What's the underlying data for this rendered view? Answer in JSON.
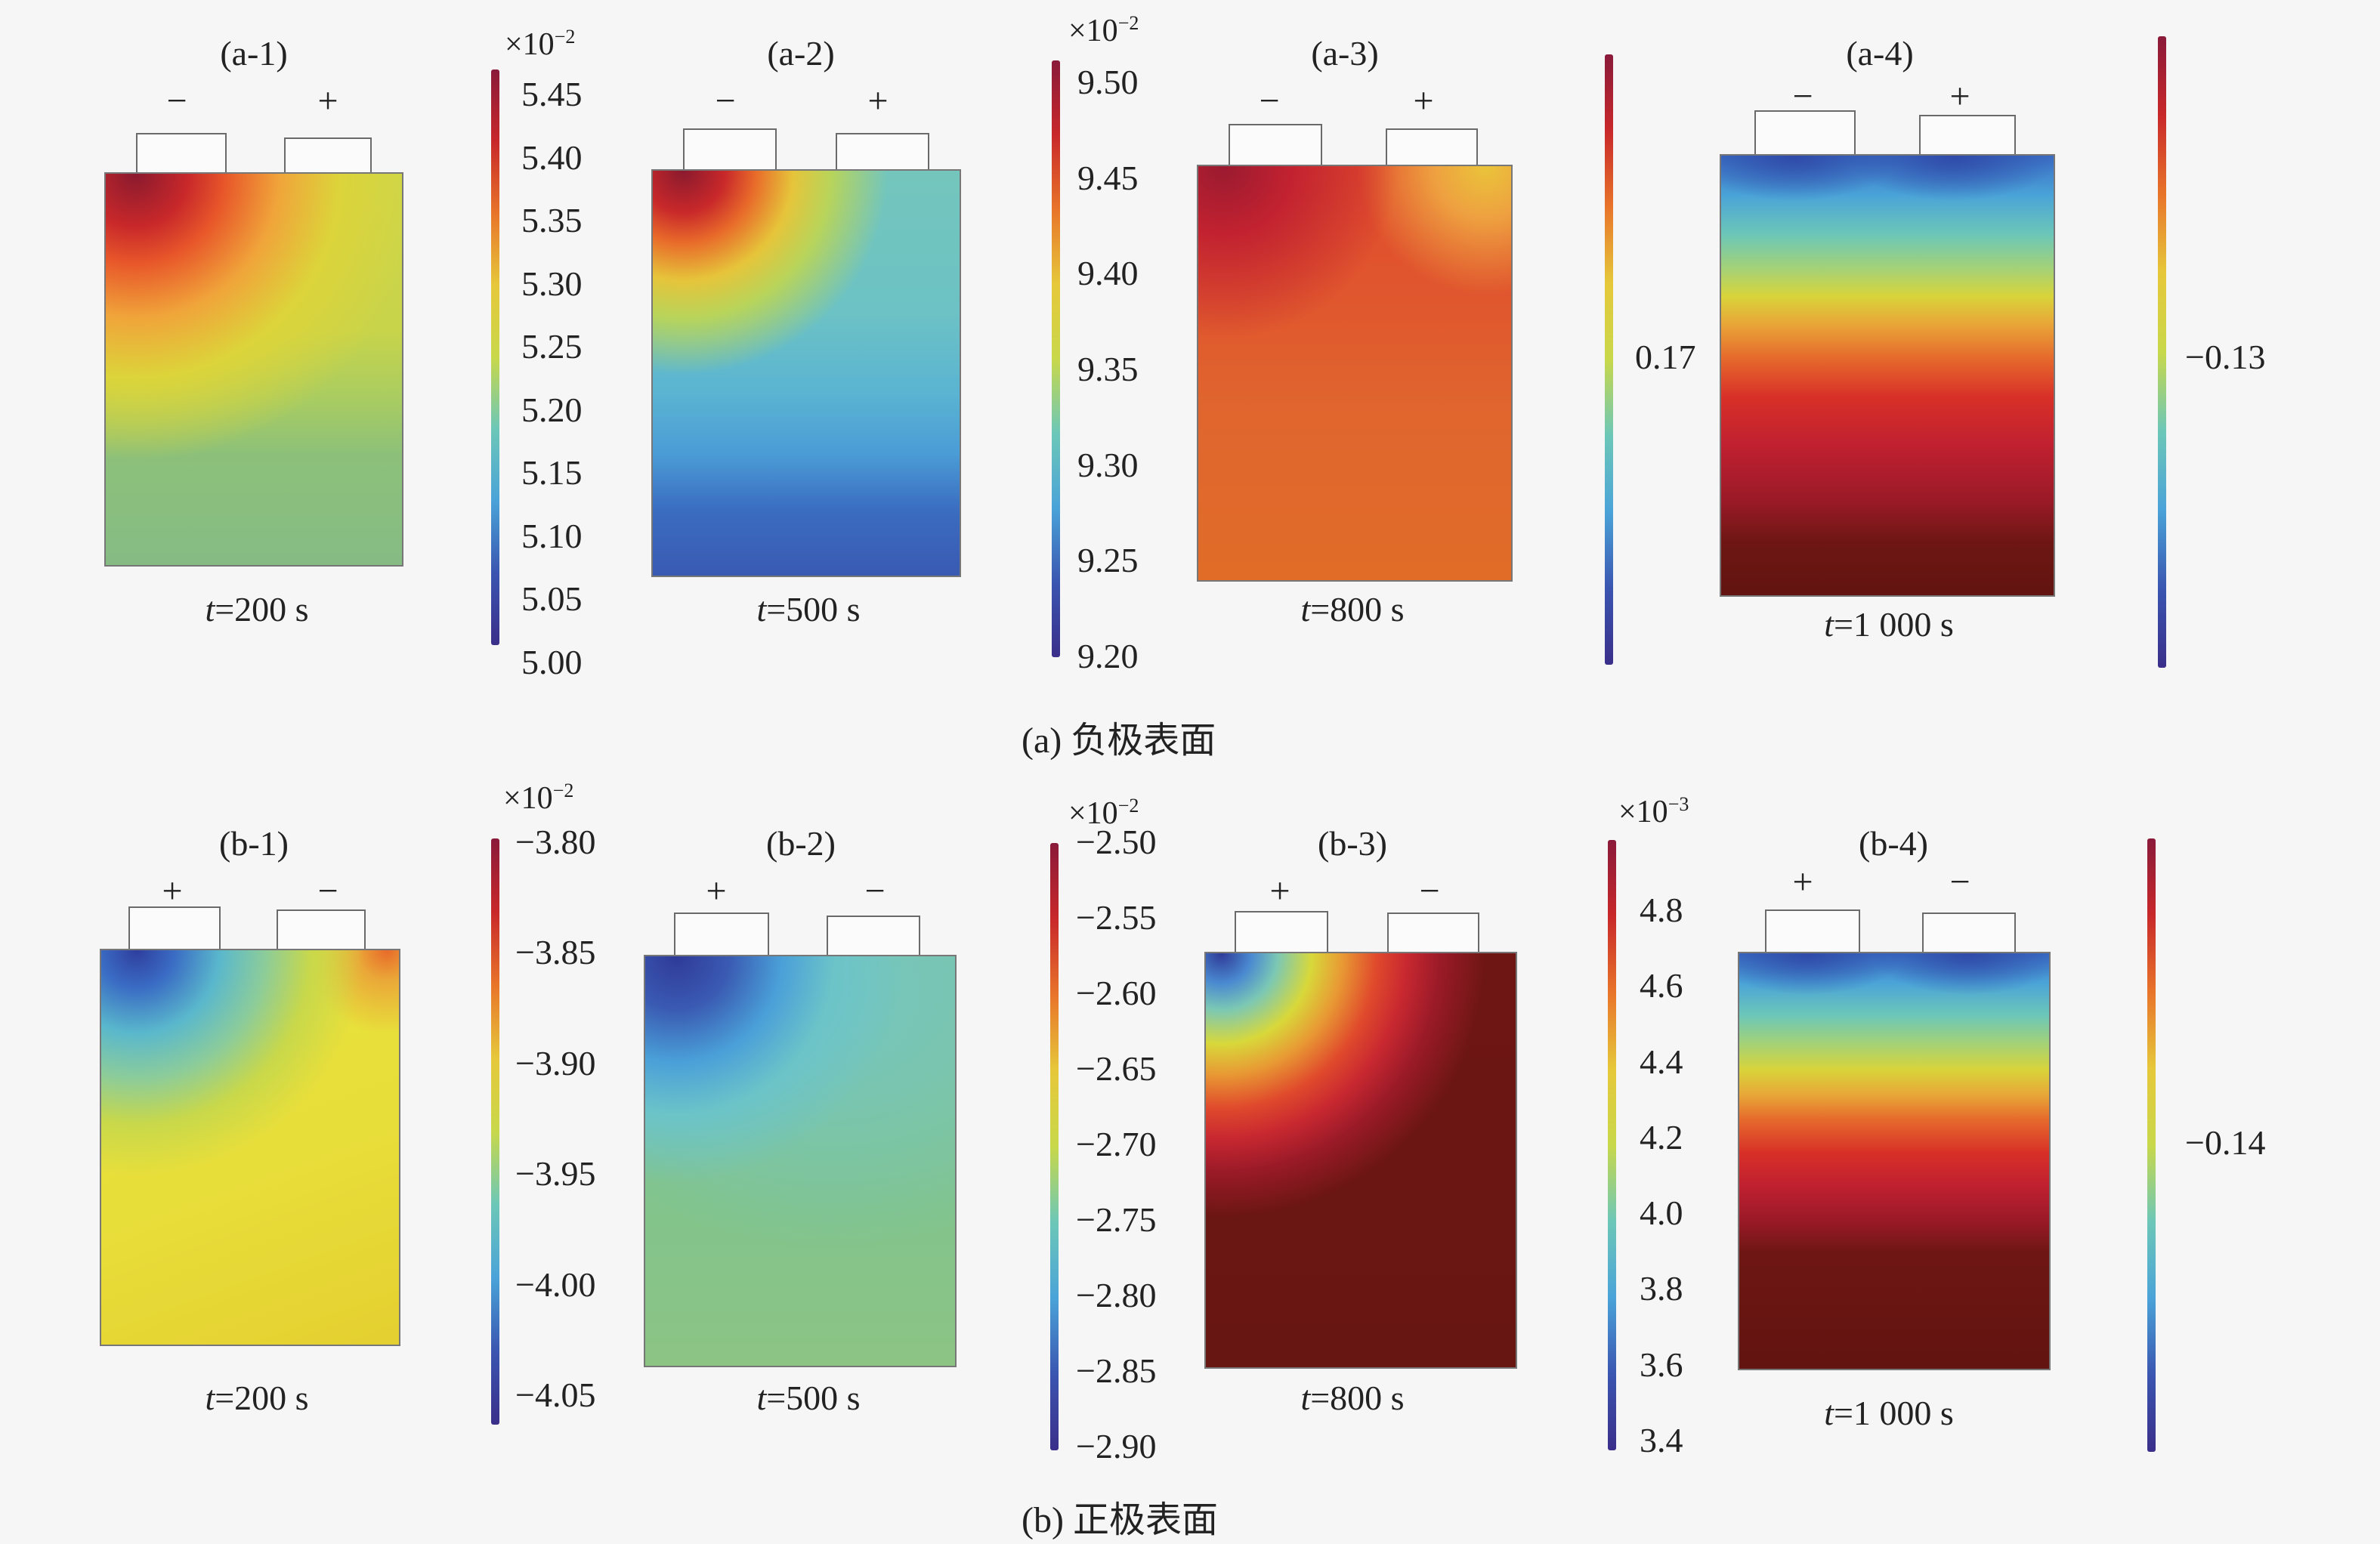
{
  "captions": {
    "a": "(a) 负极表面",
    "b": "(b) 正极表面"
  },
  "panels": {
    "a1": {
      "label": "(a-1)",
      "time": "=200 s",
      "left_sign": "−",
      "right_sign": "+"
    },
    "a2": {
      "label": "(a-2)",
      "time": "=500 s",
      "left_sign": "−",
      "right_sign": "+"
    },
    "a3": {
      "label": "(a-3)",
      "time": "=800 s",
      "left_sign": "−",
      "right_sign": "+"
    },
    "a4": {
      "label": "(a-4)",
      "time": "=1 000 s",
      "left_sign": "−",
      "right_sign": "+"
    },
    "b1": {
      "label": "(b-1)",
      "time": "=200 s",
      "left_sign": "+",
      "right_sign": "−"
    },
    "b2": {
      "label": "(b-2)",
      "time": "=500 s",
      "left_sign": "+",
      "right_sign": "−"
    },
    "b3": {
      "label": "(b-3)",
      "time": "=800 s",
      "left_sign": "+",
      "right_sign": "−"
    },
    "b4": {
      "label": "(b-4)",
      "time": "=1 000 s",
      "left_sign": "+",
      "right_sign": "−"
    }
  },
  "time_variable": "t",
  "colorbars": {
    "a1": {
      "exp_base": "×10",
      "exp_power": "−2",
      "ticks": [
        "5.45",
        "5.40",
        "5.35",
        "5.30",
        "5.25",
        "5.20",
        "5.15",
        "5.10",
        "5.05",
        "5.00"
      ]
    },
    "a2": {
      "exp_base": "×10",
      "exp_power": "−2",
      "ticks": [
        "9.50",
        "9.45",
        "9.40",
        "9.35",
        "9.30",
        "9.25",
        "9.20"
      ]
    },
    "a3": {
      "left_value": "0.17"
    },
    "a4": {
      "right_value": "−0.13"
    },
    "b1": {
      "exp_base": "×10",
      "exp_power": "−2",
      "ticks": [
        "−3.80",
        "−3.85",
        "−3.90",
        "−3.95",
        "−4.00",
        "−4.05"
      ]
    },
    "b2": {
      "exp_base": "×10",
      "exp_power": "−2",
      "ticks": [
        "−2.50",
        "−2.55",
        "−2.60",
        "−2.65",
        "−2.70",
        "−2.75",
        "−2.80",
        "−2.85",
        "−2.90"
      ]
    },
    "b3": {
      "exp_base": "×10",
      "exp_power": "−3",
      "ticks": [
        "4.8",
        "4.6",
        "4.4",
        "4.2",
        "4.0",
        "3.8",
        "3.6",
        "3.4"
      ]
    },
    "b4": {
      "right_value": "−0.14"
    }
  },
  "colors": {
    "colormap": [
      "#8a1a3a",
      "#c8282a",
      "#e8742a",
      "#e6c83a",
      "#c8d84a",
      "#6cc7b8",
      "#4aa3d8",
      "#3a55b0",
      "#3a2f8a"
    ]
  }
}
